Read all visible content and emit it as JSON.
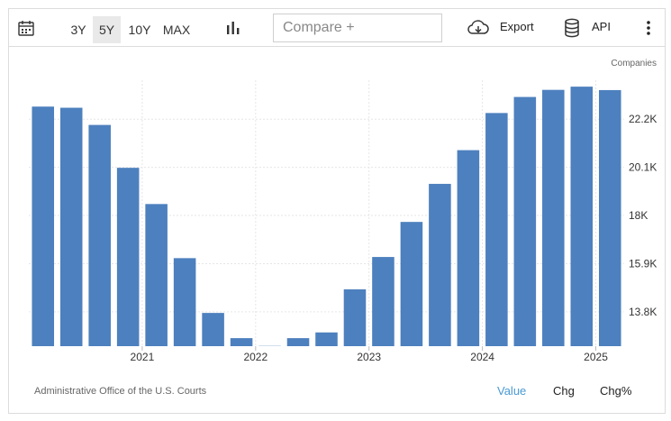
{
  "toolbar": {
    "icons": {
      "calendar": "calendar-icon",
      "chart_type": "bar-chart-icon",
      "export": "cloud-download-icon",
      "api": "database-icon",
      "more": "vertical-dots-icon"
    },
    "ranges": [
      "3Y",
      "5Y",
      "10Y",
      "MAX"
    ],
    "active_range": "5Y",
    "compare_placeholder": "Compare +",
    "export_label": "Export",
    "api_label": "API"
  },
  "colors": {
    "bar": "#4d80be",
    "accent": "#4a9ad4",
    "grid": "#e6e6e6"
  },
  "chart_data": {
    "type": "bar",
    "ylabel": "Companies",
    "ylim": [
      12300,
      23900
    ],
    "yticks": [
      13800,
      15900,
      18000,
      20100,
      22200
    ],
    "ytick_labels": [
      "13.8K",
      "15.9K",
      "18K",
      "20.1K",
      "22.2K"
    ],
    "x_labels": [
      "2021",
      "2022",
      "2023",
      "2024",
      "2025"
    ],
    "x_label_positions": [
      3.5,
      7.5,
      11.5,
      15.5,
      19.5
    ],
    "values": [
      22750,
      22700,
      21950,
      20080,
      18500,
      16140,
      13750,
      12650,
      12310,
      12650,
      12900,
      14780,
      16190,
      17720,
      19380,
      20850,
      22470,
      23170,
      23480,
      23620,
      23470
    ],
    "grid": true,
    "source": "Administrative Office of the U.S. Courts"
  },
  "footer": {
    "source": "Administrative Office of the U.S. Courts",
    "modes": [
      "Value",
      "Chg",
      "Chg%"
    ],
    "active_mode": "Value"
  }
}
